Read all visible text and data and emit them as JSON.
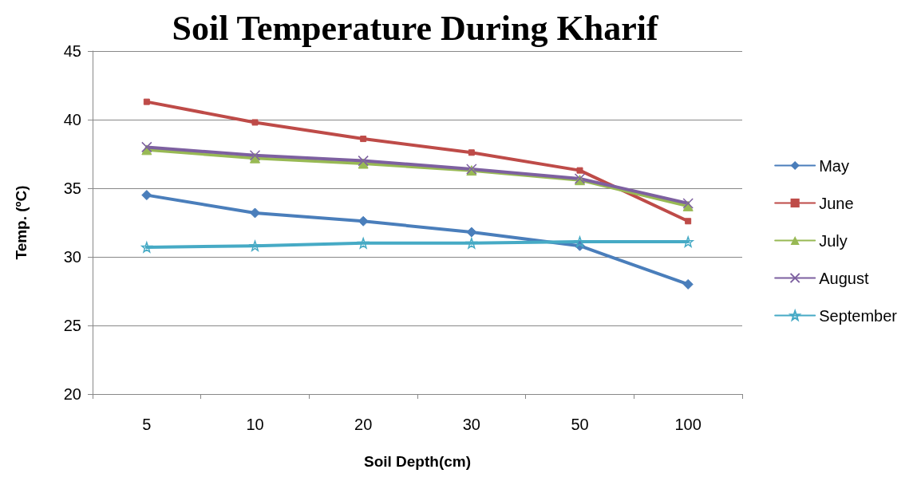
{
  "chart_data": {
    "type": "line",
    "title": "Soil Temperature During Kharif",
    "xlabel": "Soil Depth(cm)",
    "ylabel": "Temp. (ºC)",
    "categories": [
      "5",
      "10",
      "20",
      "30",
      "50",
      "100"
    ],
    "ylim": [
      20,
      45
    ],
    "yticks": [
      20,
      25,
      30,
      35,
      40,
      45
    ],
    "grid": "y",
    "legend": "right",
    "line_style": "solid",
    "series": [
      {
        "name": "May",
        "color": "#4a7ebb",
        "marker": "diamond",
        "values": [
          34.5,
          33.2,
          32.6,
          31.8,
          30.8,
          28.0
        ]
      },
      {
        "name": "June",
        "color": "#be4b48",
        "marker": "square",
        "values": [
          41.3,
          39.8,
          38.6,
          37.6,
          36.3,
          32.6
        ]
      },
      {
        "name": "July",
        "color": "#98b954",
        "marker": "triangle",
        "values": [
          37.8,
          37.2,
          36.8,
          36.3,
          35.6,
          33.7
        ]
      },
      {
        "name": "August",
        "color": "#7d60a0",
        "marker": "cross",
        "values": [
          38.0,
          37.4,
          37.0,
          36.4,
          35.7,
          33.9
        ]
      },
      {
        "name": "September",
        "color": "#46aac5",
        "marker": "star",
        "values": [
          30.7,
          30.8,
          31.0,
          31.0,
          31.1,
          31.1
        ]
      }
    ]
  }
}
